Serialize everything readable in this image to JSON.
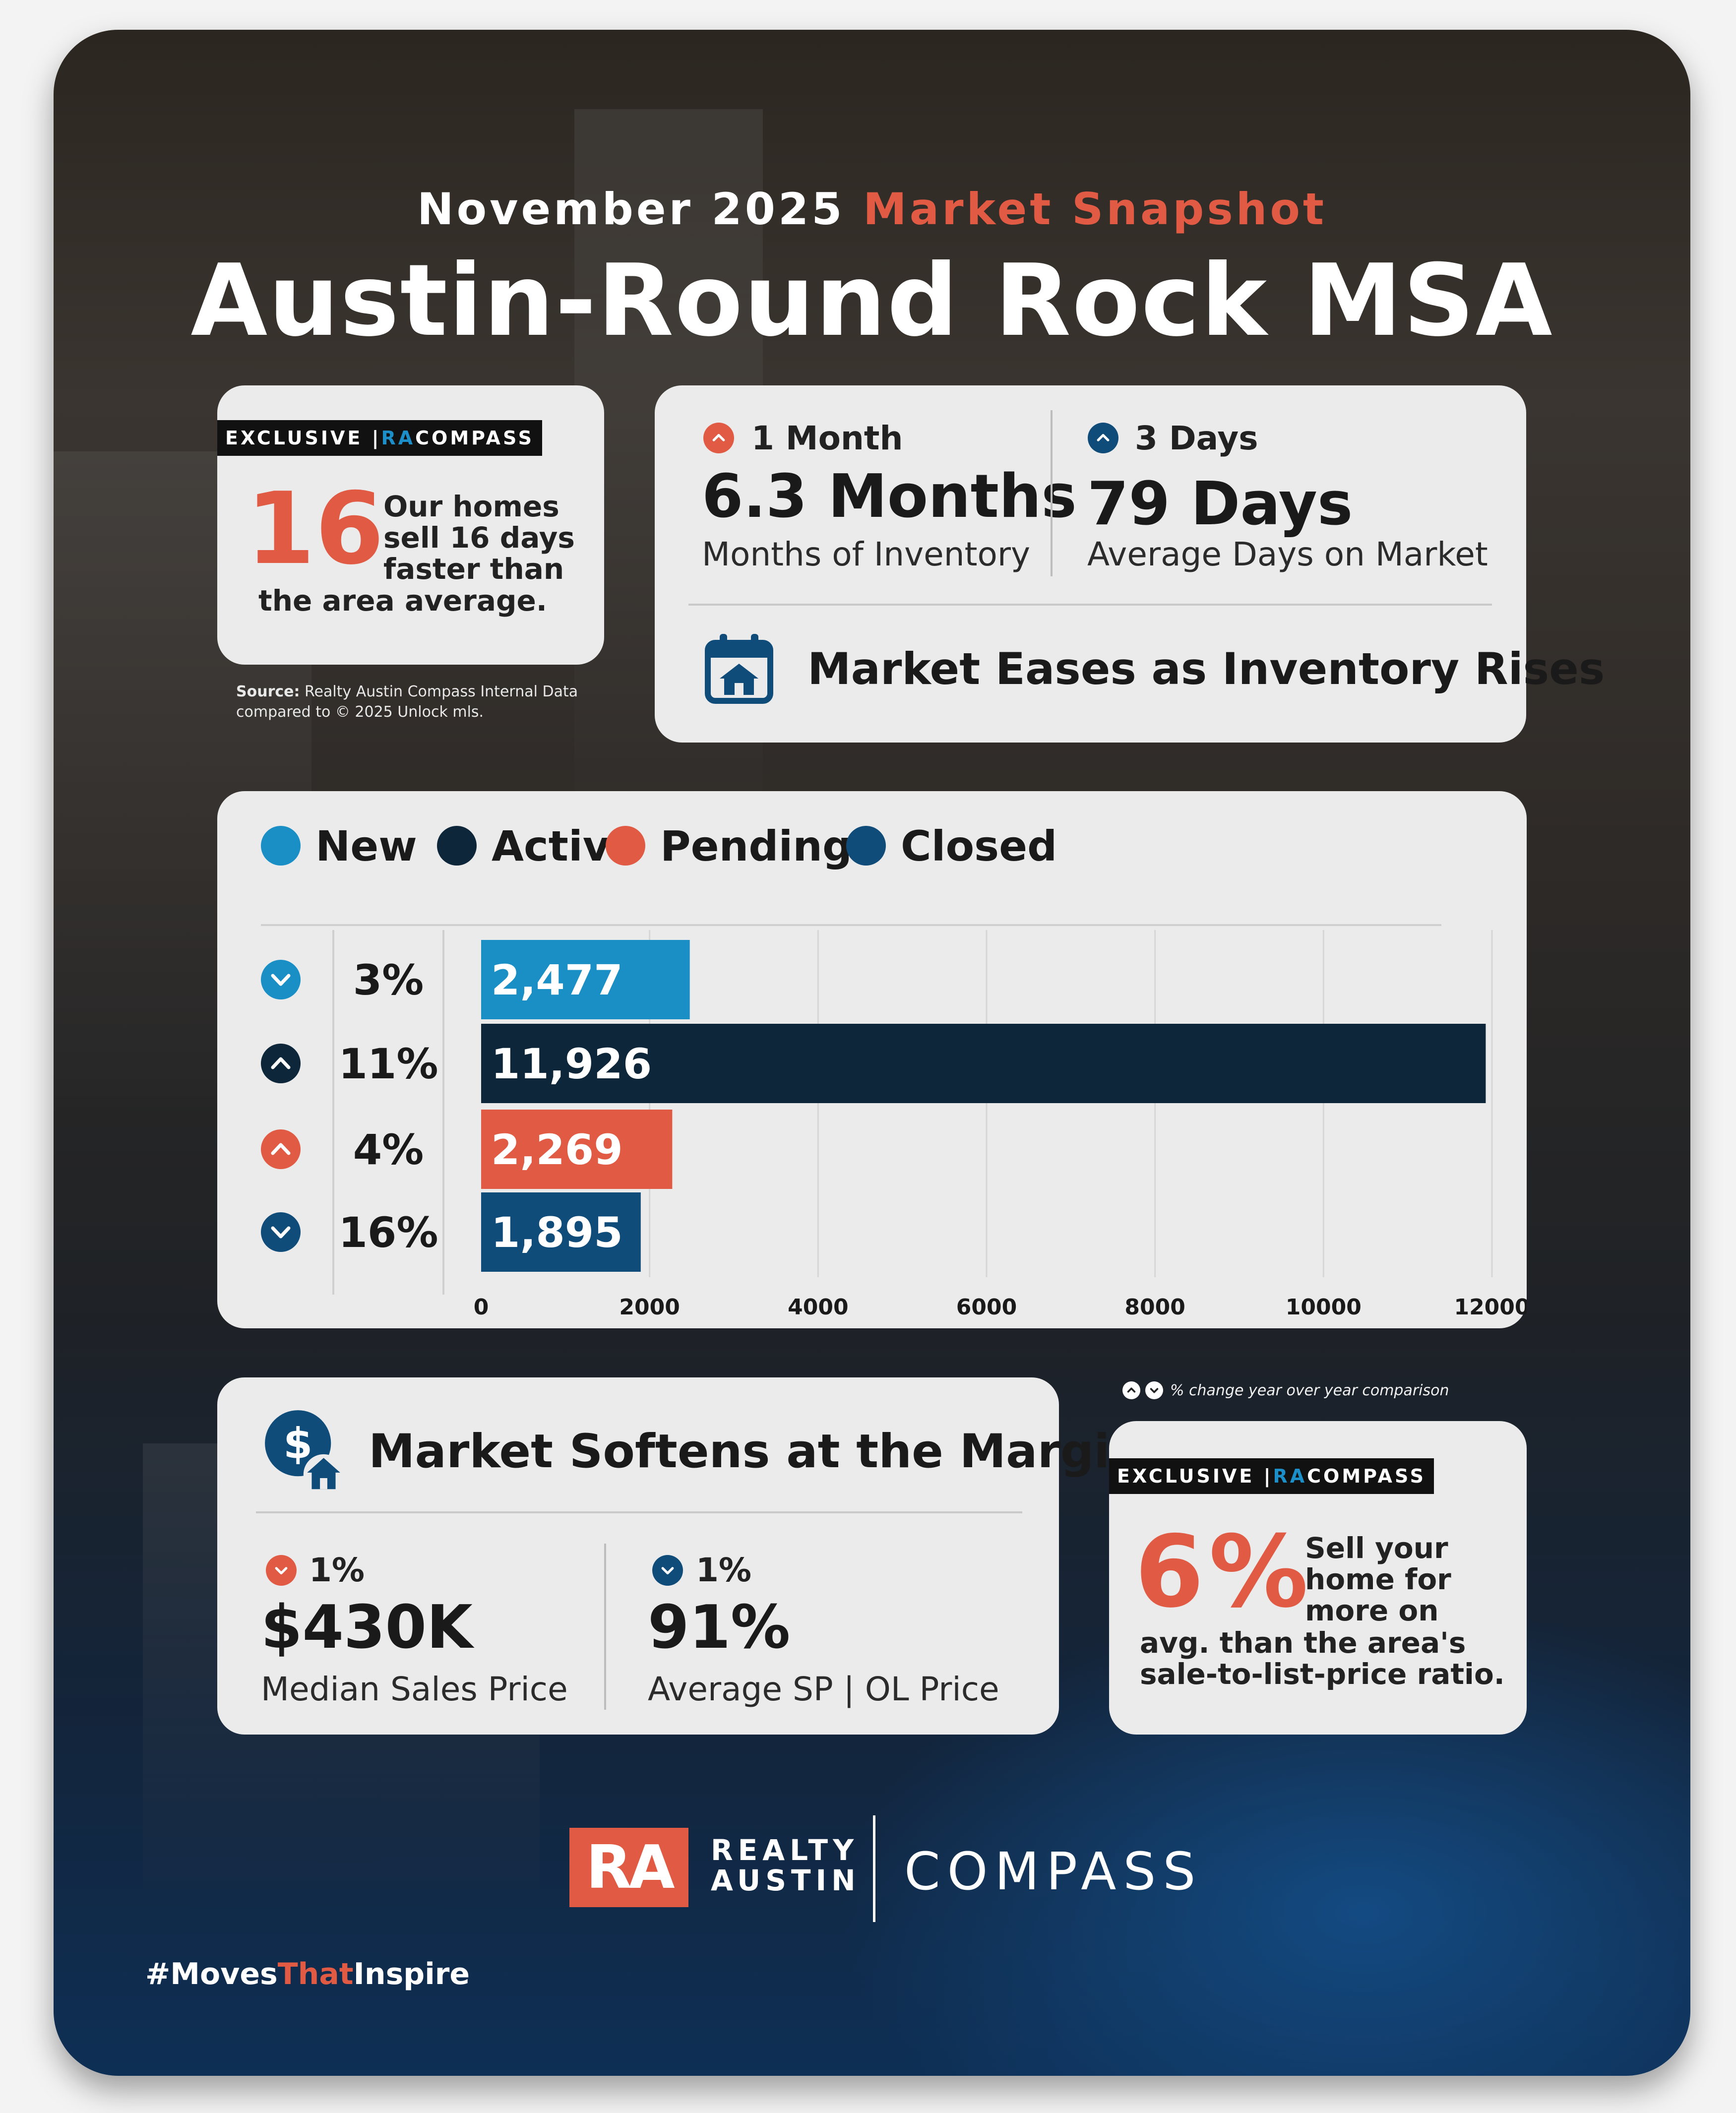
{
  "header": {
    "month": "November 2025",
    "snapshot": "Market Snapshot",
    "title": "Austin-Round Rock MSA"
  },
  "exclusive_days": {
    "badge_left": "EXCLUSIVE | ",
    "badge_ra": "RA",
    "badge_right": " COMPASS",
    "big_number": "16",
    "line1": "Our homes",
    "line2": "sell 16 days",
    "line3": "faster than",
    "line4": "the area average.",
    "source_bold": "Source:",
    "source_rest": " Realty Austin Compass Internal Data",
    "source_line2": "compared to © 2025 Unlock mls."
  },
  "inventory": {
    "change_label": "1 Month",
    "change_direction": "up",
    "value": "6.3 Months",
    "label": "Months of Inventory"
  },
  "days_on_market": {
    "change_label": "3 Days",
    "change_direction": "up",
    "value": "79 Days",
    "label": "Average Days on Market"
  },
  "market_headline": {
    "icon": "calendar-house-icon",
    "text": "Market Eases as Inventory Rises"
  },
  "chart_data": {
    "type": "bar",
    "orientation": "horizontal",
    "legend": [
      "New",
      "Active",
      "Pending",
      "Closed"
    ],
    "legend_placement": "top-left",
    "categories": [
      "New",
      "Active",
      "Pending",
      "Closed"
    ],
    "values": [
      2477,
      11926,
      2269,
      1895
    ],
    "value_labels": [
      "2,477",
      "11,926",
      "2,269",
      "1,895"
    ],
    "colors": [
      "#1a8fc6",
      "#0d2639",
      "#e05a44",
      "#0f4c7a"
    ],
    "yoy_change": [
      "3%",
      "11%",
      "4%",
      "16%"
    ],
    "yoy_direction": [
      "down",
      "up",
      "up",
      "down"
    ],
    "xlim": [
      0,
      12000
    ],
    "xticks": [
      "0",
      "2000",
      "4000",
      "6000",
      "8000",
      "10000",
      "12000"
    ],
    "xtick_values": [
      0,
      2000,
      4000,
      6000,
      8000,
      10000,
      12000
    ],
    "grid": true,
    "title": "",
    "xlabel": "",
    "ylabel": ""
  },
  "footnote": "% change year over year comparison",
  "margin_card": {
    "icon": "dollar-house-icon",
    "title": "Market Softens at the Margin",
    "median": {
      "change": "1%",
      "direction": "down",
      "value": "$430K",
      "label": "Median Sales Price"
    },
    "ratio": {
      "change": "1%",
      "direction": "down",
      "value": "91%",
      "label": "Average SP | OL Price"
    }
  },
  "exclusive_price": {
    "badge_left": "EXCLUSIVE | ",
    "badge_ra": "RA",
    "badge_right": " COMPASS",
    "big_number": "6",
    "big_percent": "%",
    "line1": "Sell your",
    "line2": "home for",
    "line3": "more on",
    "line4": "avg. than the area's",
    "line5": "sale-to-list-price ratio."
  },
  "branding": {
    "ra": "RA",
    "realty": "REALTY",
    "austin": "AUSTIN",
    "compass": "COMPASS",
    "hashtag_a": "#Moves",
    "hashtag_b": "That",
    "hashtag_c": "Inspire"
  },
  "colors": {
    "accent_red": "#e05a44",
    "navy": "#0f4c7a",
    "blue": "#1a8fc6",
    "dark": "#0d2639",
    "card": "#ebebeb"
  }
}
